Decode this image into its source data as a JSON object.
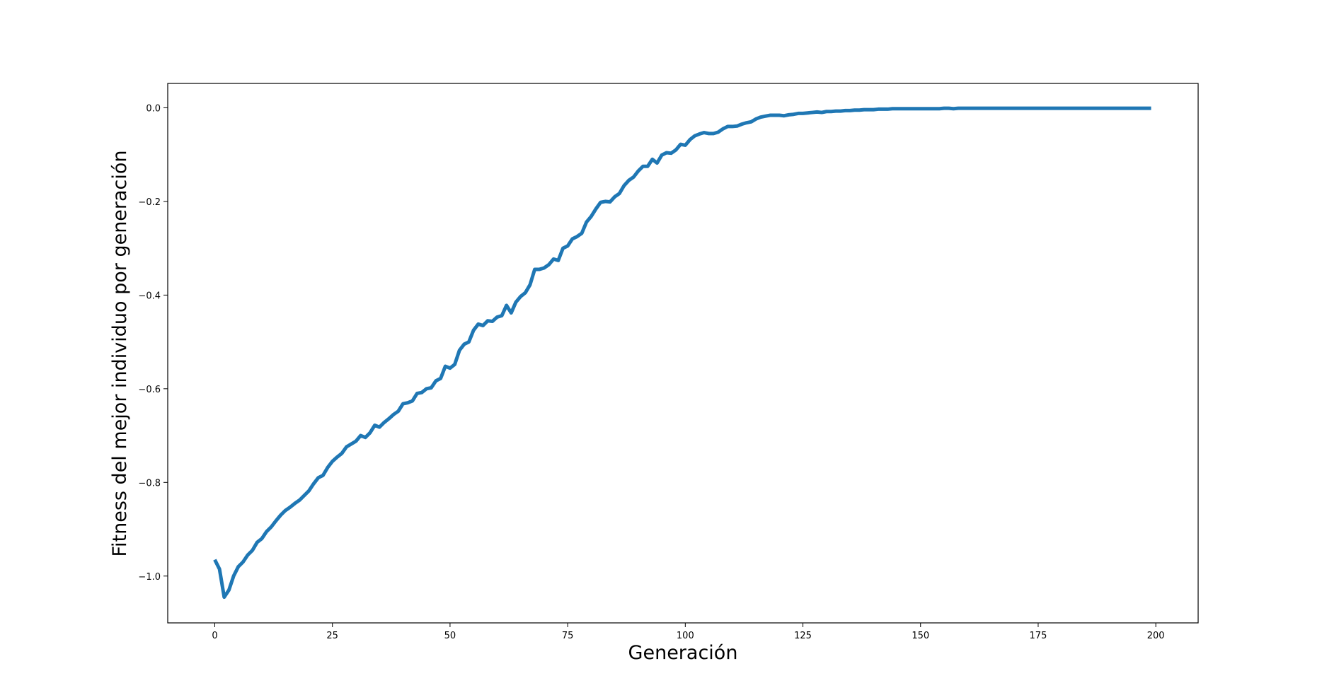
{
  "chart_data": {
    "type": "line",
    "title": "",
    "xlabel": "Generación",
    "ylabel": "Fitness del mejor individuo por generación",
    "xlim": [
      -10,
      209
    ],
    "ylim": [
      -1.1,
      0.052
    ],
    "xticks": [
      0,
      25,
      50,
      75,
      100,
      125,
      150,
      175,
      200
    ],
    "yticks": [
      -1.0,
      -0.8,
      -0.6,
      -0.4,
      -0.2,
      0.0
    ],
    "xtick_labels": [
      "0",
      "25",
      "50",
      "75",
      "100",
      "125",
      "150",
      "175",
      "200"
    ],
    "ytick_labels": [
      "−1.0",
      "−0.8",
      "−0.6",
      "−0.4",
      "−0.2",
      "0.0"
    ],
    "grid": false,
    "legend": "none",
    "line_color": "#1f77b4",
    "series": [
      {
        "x_start": 0,
        "x_step": 1,
        "values": [
          -0.965,
          -0.985,
          -1.045,
          -1.03,
          -1.0,
          -0.98,
          -0.97,
          -0.955,
          -0.945,
          -0.928,
          -0.92,
          -0.905,
          -0.895,
          -0.882,
          -0.87,
          -0.86,
          -0.853,
          -0.845,
          -0.838,
          -0.828,
          -0.818,
          -0.803,
          -0.79,
          -0.785,
          -0.768,
          -0.755,
          -0.746,
          -0.738,
          -0.724,
          -0.718,
          -0.712,
          -0.7,
          -0.704,
          -0.694,
          -0.678,
          -0.682,
          -0.672,
          -0.664,
          -0.655,
          -0.648,
          -0.632,
          -0.63,
          -0.626,
          -0.61,
          -0.608,
          -0.6,
          -0.598,
          -0.583,
          -0.578,
          -0.552,
          -0.556,
          -0.548,
          -0.518,
          -0.505,
          -0.5,
          -0.475,
          -0.462,
          -0.465,
          -0.455,
          -0.456,
          -0.447,
          -0.444,
          -0.422,
          -0.438,
          -0.415,
          -0.403,
          -0.395,
          -0.378,
          -0.345,
          -0.345,
          -0.342,
          -0.335,
          -0.323,
          -0.326,
          -0.3,
          -0.295,
          -0.28,
          -0.275,
          -0.268,
          -0.244,
          -0.232,
          -0.216,
          -0.202,
          -0.2,
          -0.201,
          -0.19,
          -0.183,
          -0.166,
          -0.155,
          -0.148,
          -0.135,
          -0.125,
          -0.125,
          -0.11,
          -0.118,
          -0.101,
          -0.096,
          -0.097,
          -0.09,
          -0.078,
          -0.08,
          -0.068,
          -0.06,
          -0.056,
          -0.053,
          -0.055,
          -0.055,
          -0.052,
          -0.045,
          -0.04,
          -0.04,
          -0.039,
          -0.035,
          -0.032,
          -0.03,
          -0.024,
          -0.02,
          -0.018,
          -0.016,
          -0.016,
          -0.016,
          -0.017,
          -0.015,
          -0.014,
          -0.012,
          -0.012,
          -0.011,
          -0.01,
          -0.009,
          -0.01,
          -0.008,
          -0.008,
          -0.007,
          -0.007,
          -0.006,
          -0.006,
          -0.005,
          -0.005,
          -0.004,
          -0.004,
          -0.004,
          -0.003,
          -0.003,
          -0.003,
          -0.002,
          -0.002,
          -0.002,
          -0.002,
          -0.002,
          -0.002,
          -0.002,
          -0.002,
          -0.002,
          -0.002,
          -0.002,
          -0.001,
          -0.001,
          -0.002,
          -0.001,
          -0.001,
          -0.001,
          -0.001,
          -0.001,
          -0.001,
          -0.001,
          -0.001,
          -0.001,
          -0.001,
          -0.001,
          -0.001,
          -0.001,
          -0.001,
          -0.001,
          -0.001,
          -0.001,
          -0.001,
          -0.001,
          -0.001,
          -0.001,
          -0.001,
          -0.001,
          -0.001,
          -0.001,
          -0.001,
          -0.001,
          -0.001,
          -0.001,
          -0.001,
          -0.001,
          -0.001,
          -0.001,
          -0.001,
          -0.001,
          -0.001,
          -0.001,
          -0.001,
          -0.001,
          -0.001,
          -0.001,
          -0.001
        ]
      }
    ]
  }
}
